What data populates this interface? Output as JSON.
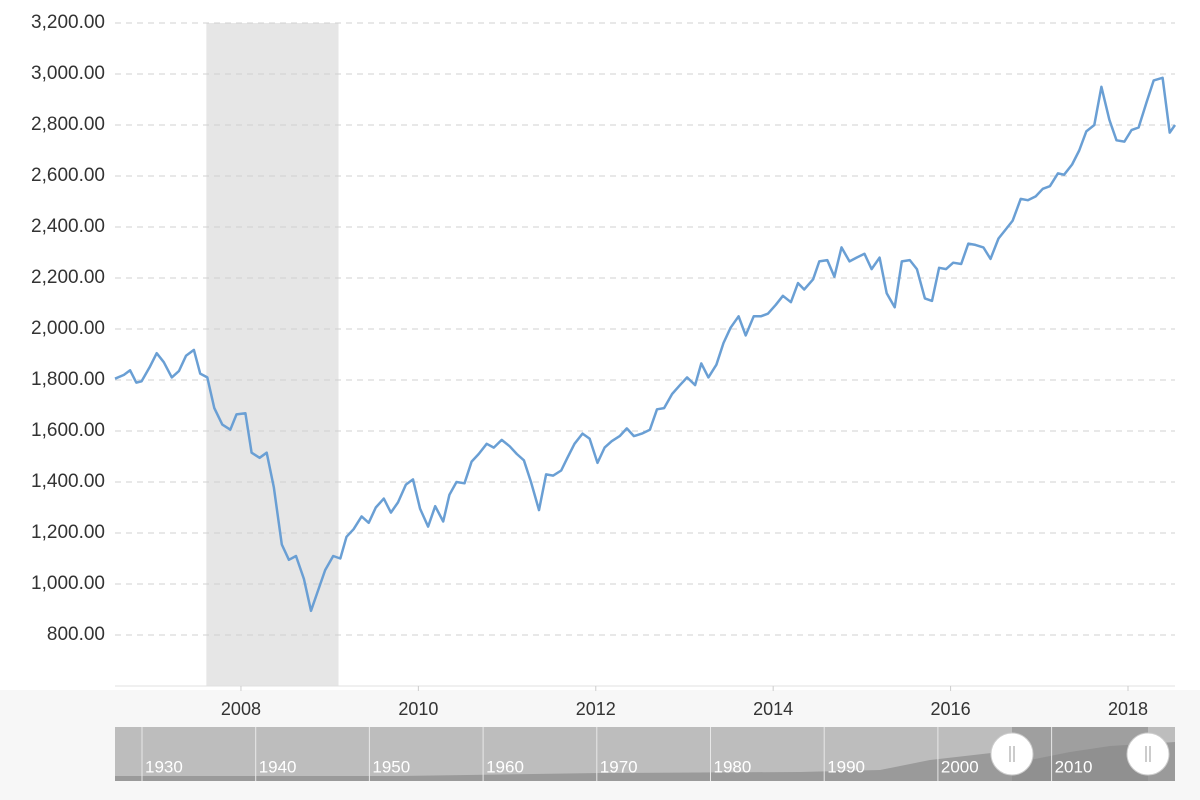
{
  "chart_data": {
    "type": "line",
    "x": [
      2006.58,
      2006.68,
      2006.75,
      2006.82,
      2006.88,
      2006.97,
      2007.05,
      2007.13,
      2007.22,
      2007.3,
      2007.38,
      2007.47,
      2007.54,
      2007.62,
      2007.7,
      2007.79,
      2007.88,
      2007.95,
      2008.05,
      2008.12,
      2008.21,
      2008.29,
      2008.37,
      2008.46,
      2008.54,
      2008.62,
      2008.71,
      2008.79,
      2008.87,
      2008.95,
      2009.04,
      2009.12,
      2009.19,
      2009.27,
      2009.36,
      2009.44,
      2009.52,
      2009.61,
      2009.69,
      2009.77,
      2009.86,
      2009.94,
      2010.02,
      2010.11,
      2010.19,
      2010.28,
      2010.35,
      2010.43,
      2010.52,
      2010.6,
      2010.68,
      2010.77,
      2010.85,
      2010.94,
      2011.03,
      2011.11,
      2011.19,
      2011.27,
      2011.36,
      2011.44,
      2011.52,
      2011.61,
      2011.68,
      2011.76,
      2011.85,
      2011.93,
      2012.02,
      2012.1,
      2012.18,
      2012.27,
      2012.35,
      2012.43,
      2012.52,
      2012.61,
      2012.69,
      2012.77,
      2012.86,
      2012.95,
      2013.03,
      2013.12,
      2013.19,
      2013.27,
      2013.36,
      2013.44,
      2013.52,
      2013.61,
      2013.69,
      2013.78,
      2013.86,
      2013.94,
      2014.03,
      2014.11,
      2014.2,
      2014.28,
      2014.35,
      2014.45,
      2014.52,
      2014.61,
      2014.69,
      2014.77,
      2014.86,
      2014.94,
      2015.03,
      2015.11,
      2015.2,
      2015.28,
      2015.37,
      2015.45,
      2015.54,
      2015.62,
      2015.71,
      2015.79,
      2015.87,
      2015.95,
      2016.03,
      2016.12,
      2016.2,
      2016.28,
      2016.37,
      2016.45,
      2016.54,
      2016.62,
      2016.7,
      2016.79,
      2016.87,
      2016.96,
      2017.04,
      2017.12,
      2017.21,
      2017.28,
      2017.37,
      2017.45,
      2017.53,
      2017.62,
      2017.7,
      2017.79,
      2017.87,
      2017.96,
      2018.04,
      2018.12,
      2018.21,
      2018.29,
      2018.39,
      2018.47,
      2018.53
    ],
    "series": [
      {
        "color": "#6a9fd4",
        "values": [
          1805,
          1820,
          1838,
          1790,
          1795,
          1850,
          1905,
          1870,
          1810,
          1835,
          1895,
          1918,
          1825,
          1810,
          1690,
          1625,
          1605,
          1665,
          1670,
          1515,
          1495,
          1515,
          1380,
          1155,
          1095,
          1110,
          1020,
          895,
          975,
          1055,
          1110,
          1100,
          1185,
          1215,
          1265,
          1240,
          1300,
          1335,
          1280,
          1320,
          1390,
          1410,
          1295,
          1225,
          1305,
          1245,
          1350,
          1400,
          1395,
          1480,
          1510,
          1550,
          1535,
          1565,
          1540,
          1510,
          1485,
          1400,
          1290,
          1430,
          1425,
          1445,
          1495,
          1550,
          1590,
          1570,
          1475,
          1535,
          1560,
          1580,
          1610,
          1580,
          1590,
          1605,
          1685,
          1690,
          1745,
          1780,
          1810,
          1780,
          1865,
          1810,
          1860,
          1945,
          2005,
          2050,
          1975,
          2050,
          2050,
          2060,
          2095,
          2130,
          2105,
          2180,
          2155,
          2195,
          2265,
          2270,
          2205,
          2320,
          2265,
          2280,
          2295,
          2235,
          2280,
          2140,
          2085,
          2265,
          2270,
          2235,
          2120,
          2110,
          2240,
          2235,
          2260,
          2255,
          2335,
          2330,
          2320,
          2275,
          2355,
          2390,
          2425,
          2510,
          2505,
          2520,
          2550,
          2560,
          2610,
          2605,
          2645,
          2700,
          2775,
          2800,
          2950,
          2820,
          2740,
          2735,
          2780,
          2790,
          2890,
          2975,
          2985,
          2770,
          2800
        ]
      }
    ],
    "xlim": [
      2006.58,
      2018.53
    ],
    "xticks": [
      2008,
      2010,
      2012,
      2014,
      2016,
      2018
    ],
    "ylim": [
      600,
      3200
    ],
    "yticks": [
      {
        "value": 800,
        "label": "800.00"
      },
      {
        "value": 1000,
        "label": "1,000.00"
      },
      {
        "value": 1200,
        "label": "1,200.00"
      },
      {
        "value": 1400,
        "label": "1,400.00"
      },
      {
        "value": 1600,
        "label": "1,600.00"
      },
      {
        "value": 1800,
        "label": "1,800.00"
      },
      {
        "value": 2000,
        "label": "2,000.00"
      },
      {
        "value": 2200,
        "label": "2,200.00"
      },
      {
        "value": 2400,
        "label": "2,400.00"
      },
      {
        "value": 2600,
        "label": "2,600.00"
      },
      {
        "value": 2800,
        "label": "2,800.00"
      },
      {
        "value": 3000,
        "label": "3,000.00"
      },
      {
        "value": 3200,
        "label": "3,200.00"
      }
    ],
    "shaded_ranges": [
      [
        2007.61,
        2009.1
      ]
    ],
    "grid": true
  },
  "navigator": {
    "labels": [
      "1930",
      "1940",
      "1950",
      "1960",
      "1970",
      "1980",
      "1990",
      "2000",
      "2010"
    ]
  }
}
